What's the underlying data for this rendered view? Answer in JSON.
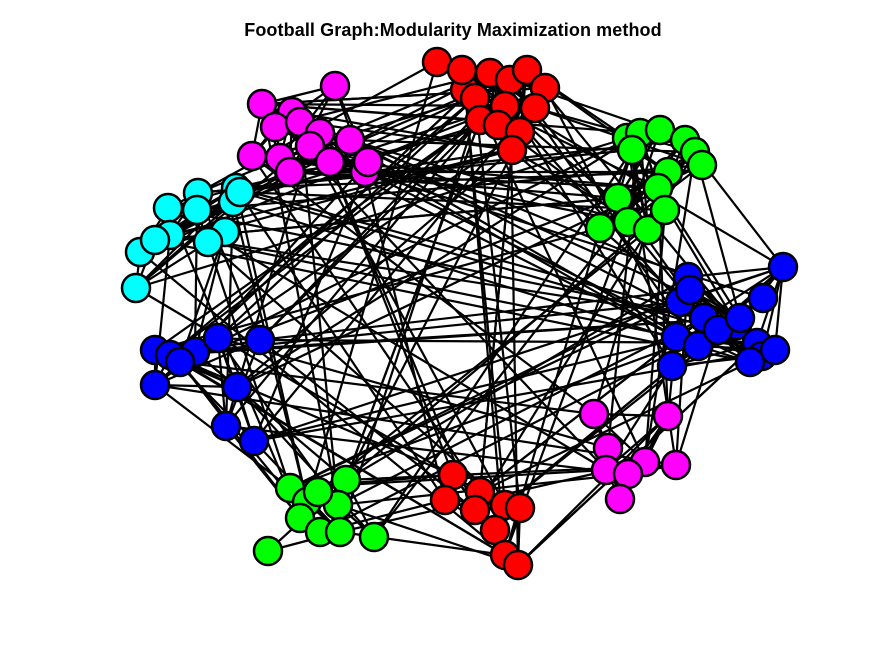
{
  "title": "Football Graph:Modularity Maximization method",
  "graph": {
    "edge_color": "#000000",
    "node_outline_color": "#000000",
    "communities": [
      {
        "id": "red-top",
        "color": "#ff0000"
      },
      {
        "id": "green-top-right",
        "color": "#00ff00"
      },
      {
        "id": "magenta-top-left",
        "color": "#ff00ff"
      },
      {
        "id": "cyan-left",
        "color": "#00ffff"
      },
      {
        "id": "blue-left",
        "color": "#0000ff"
      },
      {
        "id": "blue-right",
        "color": "#0000ff"
      },
      {
        "id": "magenta-bottom-right",
        "color": "#ff00ff"
      },
      {
        "id": "red-bottom",
        "color": "#ff0000"
      },
      {
        "id": "green-bottom-left",
        "color": "#00ff00"
      }
    ]
  }
}
